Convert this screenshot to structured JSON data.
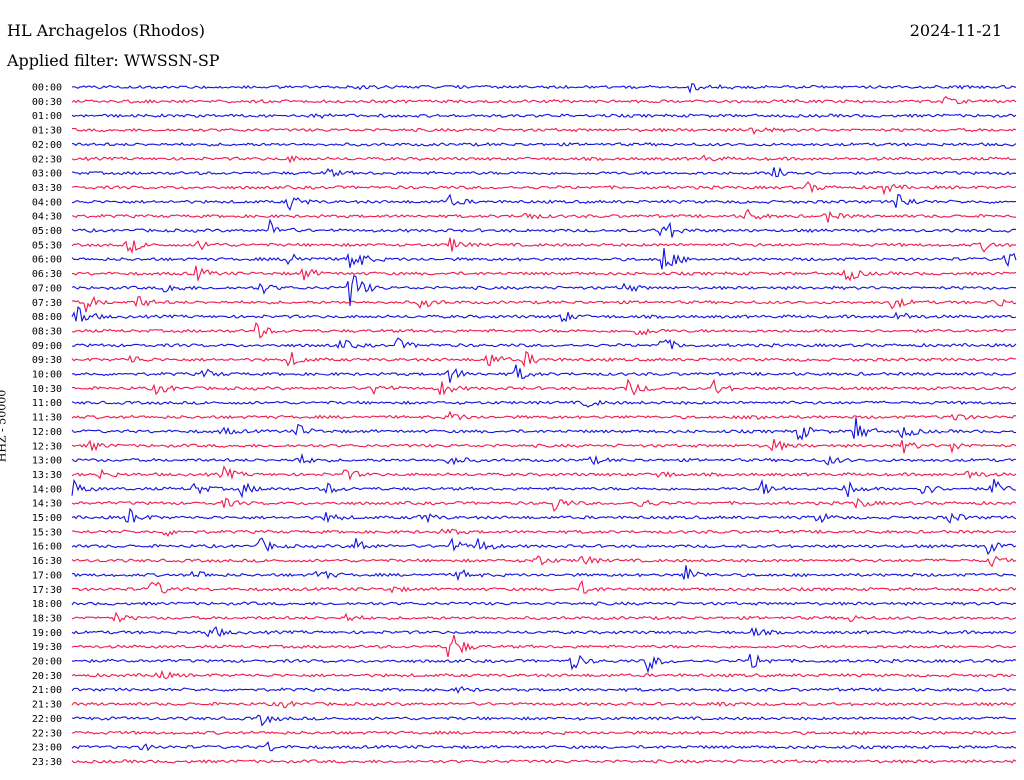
{
  "header": {
    "station": "HL Archagelos (Rhodos)",
    "date": "2024-11-21",
    "filter": "Applied filter: WWSSN-SP"
  },
  "chart_data": {
    "type": "line",
    "ylabel": "HHZ - 50000",
    "colors": {
      "even": "#1010e0",
      "odd": "#f0184c"
    },
    "traces": [
      {
        "label": "00:00",
        "events": [
          {
            "t": 0.305,
            "a": 2
          },
          {
            "t": 0.655,
            "a": 4
          },
          {
            "t": 0.69,
            "a": 3
          }
        ]
      },
      {
        "label": "00:30",
        "events": [
          {
            "t": 0.925,
            "a": 4
          }
        ]
      },
      {
        "label": "01:00",
        "events": [
          {
            "t": 0.26,
            "a": 3
          }
        ]
      },
      {
        "label": "01:30",
        "events": [
          {
            "t": 0.72,
            "a": 5
          }
        ]
      },
      {
        "label": "02:00",
        "events": []
      },
      {
        "label": "02:30",
        "events": [
          {
            "t": 0.23,
            "a": 3
          },
          {
            "t": 0.67,
            "a": 3
          }
        ]
      },
      {
        "label": "03:00",
        "events": [
          {
            "t": 0.27,
            "a": 5
          },
          {
            "t": 0.745,
            "a": 11
          }
        ]
      },
      {
        "label": "03:30",
        "events": [
          {
            "t": 0.78,
            "a": 5
          },
          {
            "t": 0.86,
            "a": 6
          }
        ]
      },
      {
        "label": "04:00",
        "events": [
          {
            "t": 0.23,
            "a": 9
          },
          {
            "t": 0.4,
            "a": 6
          },
          {
            "t": 0.875,
            "a": 11
          }
        ]
      },
      {
        "label": "04:30",
        "events": [
          {
            "t": 0.48,
            "a": 5
          },
          {
            "t": 0.715,
            "a": 7
          },
          {
            "t": 0.8,
            "a": 6
          }
        ]
      },
      {
        "label": "05:00",
        "events": [
          {
            "t": 0.21,
            "a": 10
          },
          {
            "t": 0.625,
            "a": 18
          }
        ]
      },
      {
        "label": "05:30",
        "events": [
          {
            "t": 0.06,
            "a": 9
          },
          {
            "t": 0.135,
            "a": 6
          },
          {
            "t": 0.4,
            "a": 8
          },
          {
            "t": 0.965,
            "a": 6
          }
        ]
      },
      {
        "label": "06:00",
        "events": [
          {
            "t": 0.23,
            "a": 9
          },
          {
            "t": 0.295,
            "a": 18
          },
          {
            "t": 0.625,
            "a": 20
          },
          {
            "t": 0.99,
            "a": 10
          }
        ]
      },
      {
        "label": "06:30",
        "events": [
          {
            "t": 0.13,
            "a": 8
          },
          {
            "t": 0.245,
            "a": 7
          },
          {
            "t": 0.82,
            "a": 10
          }
        ]
      },
      {
        "label": "07:00",
        "events": [
          {
            "t": 0.1,
            "a": 7
          },
          {
            "t": 0.2,
            "a": 6
          },
          {
            "t": 0.295,
            "a": 24
          },
          {
            "t": 0.585,
            "a": 6
          }
        ]
      },
      {
        "label": "07:30",
        "events": [
          {
            "t": 0.015,
            "a": 9
          },
          {
            "t": 0.07,
            "a": 7
          },
          {
            "t": 0.37,
            "a": 7
          },
          {
            "t": 0.87,
            "a": 8
          },
          {
            "t": 0.975,
            "a": 7
          }
        ]
      },
      {
        "label": "08:00",
        "events": [
          {
            "t": 0.005,
            "a": 14
          },
          {
            "t": 0.52,
            "a": 6
          },
          {
            "t": 0.875,
            "a": 6
          }
        ]
      },
      {
        "label": "08:30",
        "events": [
          {
            "t": 0.195,
            "a": 9
          },
          {
            "t": 0.6,
            "a": 7
          }
        ]
      },
      {
        "label": "09:00",
        "events": [
          {
            "t": 0.285,
            "a": 6
          },
          {
            "t": 0.345,
            "a": 6
          },
          {
            "t": 0.625,
            "a": 9
          }
        ]
      },
      {
        "label": "09:30",
        "events": [
          {
            "t": 0.06,
            "a": 6
          },
          {
            "t": 0.23,
            "a": 9
          },
          {
            "t": 0.44,
            "a": 9
          },
          {
            "t": 0.48,
            "a": 8
          }
        ]
      },
      {
        "label": "10:00",
        "events": [
          {
            "t": 0.14,
            "a": 5
          },
          {
            "t": 0.4,
            "a": 9
          },
          {
            "t": 0.47,
            "a": 9
          }
        ]
      },
      {
        "label": "10:30",
        "events": [
          {
            "t": 0.09,
            "a": 7
          },
          {
            "t": 0.32,
            "a": 7
          },
          {
            "t": 0.39,
            "a": 9
          },
          {
            "t": 0.59,
            "a": 10
          },
          {
            "t": 0.68,
            "a": 8
          }
        ]
      },
      {
        "label": "11:00",
        "events": [
          {
            "t": 0.545,
            "a": 5
          }
        ]
      },
      {
        "label": "11:30",
        "events": [
          {
            "t": 0.4,
            "a": 6
          },
          {
            "t": 0.72,
            "a": 6
          },
          {
            "t": 0.93,
            "a": 7
          }
        ]
      },
      {
        "label": "12:00",
        "events": [
          {
            "t": 0.16,
            "a": 4
          },
          {
            "t": 0.24,
            "a": 7
          },
          {
            "t": 0.77,
            "a": 10
          },
          {
            "t": 0.83,
            "a": 14
          },
          {
            "t": 0.88,
            "a": 8
          }
        ]
      },
      {
        "label": "12:30",
        "events": [
          {
            "t": 0.02,
            "a": 5
          },
          {
            "t": 0.74,
            "a": 9
          },
          {
            "t": 0.88,
            "a": 7
          },
          {
            "t": 0.93,
            "a": 7
          }
        ]
      },
      {
        "label": "13:00",
        "events": [
          {
            "t": 0.24,
            "a": 6
          },
          {
            "t": 0.4,
            "a": 7
          },
          {
            "t": 0.55,
            "a": 4
          },
          {
            "t": 0.8,
            "a": 5
          }
        ]
      },
      {
        "label": "13:30",
        "events": [
          {
            "t": 0.03,
            "a": 5
          },
          {
            "t": 0.16,
            "a": 8
          },
          {
            "t": 0.29,
            "a": 6
          },
          {
            "t": 0.62,
            "a": 5
          },
          {
            "t": 0.95,
            "a": 6
          }
        ]
      },
      {
        "label": "14:00",
        "events": [
          {
            "t": 0.0,
            "a": 10
          },
          {
            "t": 0.13,
            "a": 7
          },
          {
            "t": 0.18,
            "a": 7
          },
          {
            "t": 0.27,
            "a": 6
          },
          {
            "t": 0.73,
            "a": 8
          },
          {
            "t": 0.82,
            "a": 10
          },
          {
            "t": 0.9,
            "a": 9
          },
          {
            "t": 0.975,
            "a": 10
          }
        ]
      },
      {
        "label": "14:30",
        "events": [
          {
            "t": 0.16,
            "a": 5
          },
          {
            "t": 0.51,
            "a": 9
          },
          {
            "t": 0.6,
            "a": 7
          },
          {
            "t": 0.83,
            "a": 6
          }
        ]
      },
      {
        "label": "15:00",
        "events": [
          {
            "t": 0.06,
            "a": 10
          },
          {
            "t": 0.27,
            "a": 6
          },
          {
            "t": 0.37,
            "a": 7
          },
          {
            "t": 0.79,
            "a": 6
          },
          {
            "t": 0.93,
            "a": 6
          }
        ]
      },
      {
        "label": "15:30",
        "events": [
          {
            "t": 0.1,
            "a": 4
          },
          {
            "t": 0.395,
            "a": 5
          }
        ]
      },
      {
        "label": "16:00",
        "events": [
          {
            "t": 0.2,
            "a": 8
          },
          {
            "t": 0.3,
            "a": 9
          },
          {
            "t": 0.4,
            "a": 9
          },
          {
            "t": 0.43,
            "a": 8
          },
          {
            "t": 0.97,
            "a": 7
          }
        ]
      },
      {
        "label": "16:30",
        "events": [
          {
            "t": 0.49,
            "a": 8
          },
          {
            "t": 0.54,
            "a": 6
          },
          {
            "t": 0.97,
            "a": 8
          }
        ]
      },
      {
        "label": "17:00",
        "events": [
          {
            "t": 0.13,
            "a": 6
          },
          {
            "t": 0.26,
            "a": 7
          },
          {
            "t": 0.41,
            "a": 6
          },
          {
            "t": 0.65,
            "a": 10
          }
        ]
      },
      {
        "label": "17:30",
        "events": [
          {
            "t": 0.085,
            "a": 12
          },
          {
            "t": 0.335,
            "a": 4
          },
          {
            "t": 0.54,
            "a": 7
          }
        ]
      },
      {
        "label": "18:00",
        "events": []
      },
      {
        "label": "18:30",
        "events": [
          {
            "t": 0.045,
            "a": 5
          },
          {
            "t": 0.29,
            "a": 5
          },
          {
            "t": 0.82,
            "a": 5
          }
        ]
      },
      {
        "label": "19:00",
        "events": [
          {
            "t": 0.145,
            "a": 9
          },
          {
            "t": 0.72,
            "a": 5
          }
        ]
      },
      {
        "label": "19:30",
        "events": [
          {
            "t": 0.4,
            "a": 22
          }
        ]
      },
      {
        "label": "20:00",
        "events": [
          {
            "t": 0.53,
            "a": 9
          },
          {
            "t": 0.61,
            "a": 10
          },
          {
            "t": 0.72,
            "a": 11
          }
        ]
      },
      {
        "label": "20:30",
        "events": [
          {
            "t": 0.09,
            "a": 6
          }
        ]
      },
      {
        "label": "21:00",
        "events": [
          {
            "t": 0.41,
            "a": 3
          }
        ]
      },
      {
        "label": "21:30",
        "events": [
          {
            "t": 0.22,
            "a": 5
          },
          {
            "t": 0.68,
            "a": 5
          }
        ]
      },
      {
        "label": "22:00",
        "events": [
          {
            "t": 0.2,
            "a": 7
          }
        ]
      },
      {
        "label": "22:30",
        "events": []
      },
      {
        "label": "23:00",
        "events": [
          {
            "t": 0.075,
            "a": 3
          },
          {
            "t": 0.205,
            "a": 6
          }
        ]
      },
      {
        "label": "23:30",
        "events": []
      }
    ]
  }
}
